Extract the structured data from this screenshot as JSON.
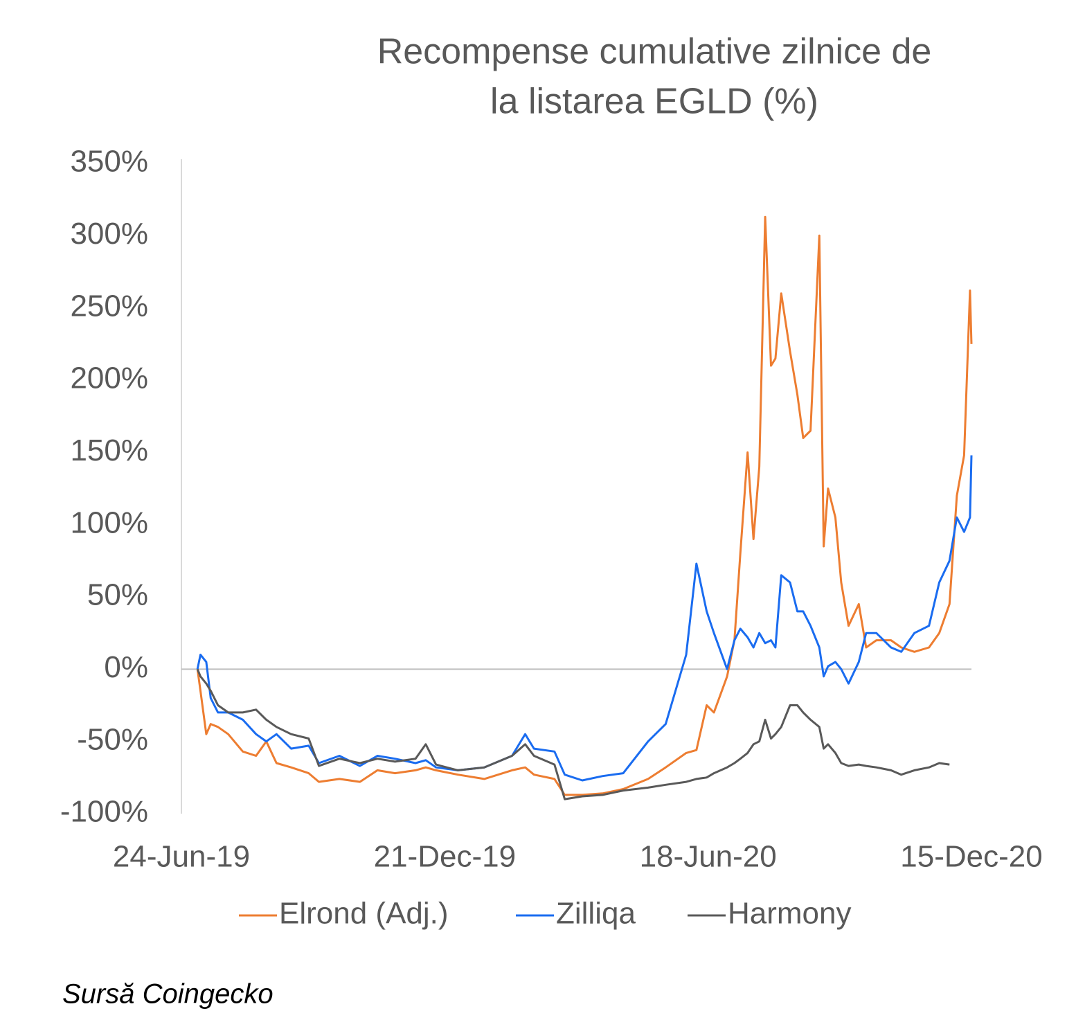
{
  "chart_data": {
    "type": "line",
    "title": [
      "Recompense cumulative zilnice de",
      "la listarea EGLD (%)"
    ],
    "footnote": "Sursă Coingecko",
    "x": [
      "2019-07-05",
      "2019-07-07",
      "2019-07-11",
      "2019-07-14",
      "2019-07-19",
      "2019-07-26",
      "2019-08-05",
      "2019-08-14",
      "2019-08-21",
      "2019-08-28",
      "2019-09-07",
      "2019-09-19",
      "2019-09-26",
      "2019-10-10",
      "2019-10-24",
      "2019-11-05",
      "2019-11-17",
      "2019-12-01",
      "2019-12-08",
      "2019-12-15",
      "2019-12-30",
      "2020-01-17",
      "2020-02-05",
      "2020-02-14",
      "2020-02-20",
      "2020-03-05",
      "2020-03-12",
      "2020-03-24",
      "2020-04-07",
      "2020-04-21",
      "2020-05-08",
      "2020-05-20",
      "2020-06-03",
      "2020-06-10",
      "2020-06-17",
      "2020-06-22",
      "2020-07-01",
      "2020-07-06",
      "2020-07-10",
      "2020-07-15",
      "2020-07-19",
      "2020-07-23",
      "2020-07-27",
      "2020-07-31",
      "2020-08-03",
      "2020-08-07",
      "2020-08-13",
      "2020-08-18",
      "2020-08-22",
      "2020-08-27",
      "2020-09-02",
      "2020-09-05",
      "2020-09-08",
      "2020-09-13",
      "2020-09-17",
      "2020-09-22",
      "2020-09-29",
      "2020-10-04",
      "2020-10-11",
      "2020-10-21",
      "2020-10-28",
      "2020-11-06",
      "2020-11-16",
      "2020-11-23",
      "2020-11-30",
      "2020-12-05",
      "2020-12-10",
      "2020-12-14",
      "2020-12-15"
    ],
    "series": [
      {
        "name": "Elrond (Adj.)",
        "color": "#ed7d31",
        "values": [
          0,
          -15,
          -45,
          -38,
          -40,
          -45,
          -57,
          -60,
          -50,
          -65,
          -68,
          -72,
          -78,
          -76,
          -78,
          -70,
          -72,
          -70,
          -68,
          -70,
          -73,
          -76,
          -70,
          -68,
          -73,
          -76,
          -87,
          -87,
          -86,
          -83,
          -76,
          -68,
          -58,
          -56,
          -25,
          -30,
          -5,
          20,
          80,
          150,
          90,
          140,
          313,
          210,
          215,
          260,
          220,
          190,
          160,
          165,
          300,
          85,
          125,
          105,
          60,
          30,
          45,
          15,
          20,
          20,
          15,
          12,
          15,
          25,
          45,
          120,
          148,
          262,
          225
        ]
      },
      {
        "name": "Zilliqa",
        "color": "#1a6cf0",
        "values": [
          0,
          10,
          5,
          -20,
          -30,
          -30,
          -35,
          -45,
          -50,
          -45,
          -55,
          -53,
          -65,
          -60,
          -67,
          -60,
          -62,
          -65,
          -63,
          -68,
          -70,
          -68,
          -60,
          -45,
          -55,
          -57,
          -73,
          -77,
          -74,
          -72,
          -50,
          -38,
          10,
          73,
          40,
          25,
          0,
          20,
          28,
          22,
          15,
          25,
          18,
          20,
          15,
          65,
          60,
          40,
          40,
          30,
          15,
          -5,
          2,
          5,
          0,
          -10,
          5,
          25,
          25,
          15,
          12,
          25,
          30,
          60,
          75,
          105,
          95,
          105,
          148
        ]
      },
      {
        "name": "Harmony",
        "color": "#595959",
        "values": [
          0,
          -5,
          -10,
          -15,
          -25,
          -30,
          -30,
          -28,
          -35,
          -40,
          -45,
          -48,
          -67,
          -62,
          -65,
          -62,
          -64,
          -62,
          -52,
          -66,
          -70,
          -68,
          -60,
          -52,
          -60,
          -66,
          -90,
          -88,
          -87,
          -84,
          -82,
          -80,
          -78,
          -76,
          -75,
          -72,
          -68,
          -65,
          -62,
          -58,
          -52,
          -50,
          -35,
          -48,
          -45,
          -40,
          -25,
          -25,
          -30,
          -35,
          -40,
          -55,
          -52,
          -58,
          -65,
          -67,
          -66,
          -67,
          -68,
          -70,
          -73,
          -70,
          -68,
          -65,
          -66,
          null,
          null,
          null,
          null
        ]
      }
    ],
    "xlim": [
      "2019-06-24",
      "2020-12-15"
    ],
    "xticks": [
      {
        "value": "2019-06-24",
        "label": "24-Jun-19"
      },
      {
        "value": "2019-12-21",
        "label": "21-Dec-19"
      },
      {
        "value": "2020-06-18",
        "label": "18-Jun-20"
      },
      {
        "value": "2020-12-15",
        "label": "15-Dec-20"
      }
    ],
    "ylim": [
      -100,
      350
    ],
    "yticks": [
      {
        "value": -100,
        "label": "-100%"
      },
      {
        "value": -50,
        "label": "-50%"
      },
      {
        "value": 0,
        "label": "0%"
      },
      {
        "value": 50,
        "label": "50%"
      },
      {
        "value": 100,
        "label": "100%"
      },
      {
        "value": 150,
        "label": "150%"
      },
      {
        "value": 200,
        "label": "200%"
      },
      {
        "value": 250,
        "label": "250%"
      },
      {
        "value": 300,
        "label": "300%"
      },
      {
        "value": 350,
        "label": "350%"
      }
    ],
    "grid": false,
    "legend": "bottom"
  }
}
